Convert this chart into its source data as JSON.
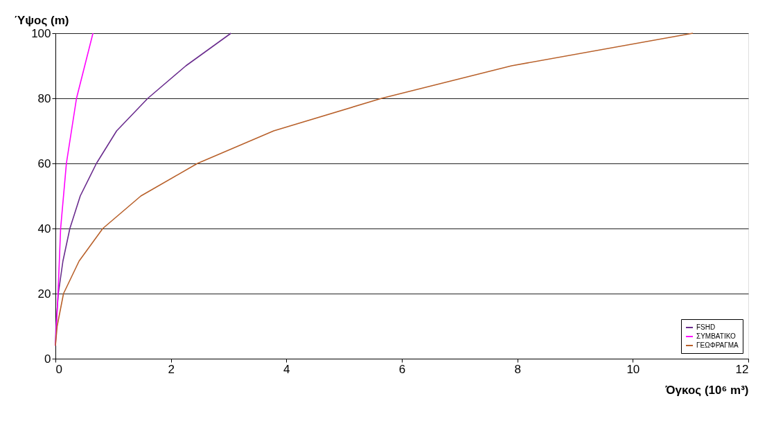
{
  "chart_data": {
    "type": "line",
    "xlabel": "Όγκος (10⁶ m³)",
    "ylabel": "Ύψος (m)",
    "xlim": [
      0,
      12
    ],
    "xticks": [
      0,
      2,
      4,
      6,
      8,
      10,
      12
    ],
    "ylim": [
      0,
      100
    ],
    "yticks": [
      0,
      20,
      40,
      60,
      80,
      100
    ],
    "grid": "y",
    "legend": "bottom right",
    "marker": "none",
    "line_style": "solid",
    "series": [
      {
        "name": "FSHD",
        "color": "#6a2c8e",
        "x": [
          0,
          0.01,
          0.05,
          0.13,
          0.25,
          0.43,
          0.71,
          1.06,
          1.6,
          2.26,
          3.04
        ],
        "values": [
          4,
          10,
          20,
          30,
          40,
          50,
          60,
          70,
          80,
          90,
          100
        ]
      },
      {
        "name": "ΣΥΜΒΑΤΙΚΟ",
        "color": "#ff00ff",
        "x": [
          0,
          0.045,
          0.09,
          0.19,
          0.365,
          0.65
        ],
        "values": [
          4,
          20,
          40,
          60,
          80,
          100
        ]
      },
      {
        "name": "ΓΕΩΦΡΑΓΜΑ",
        "color": "#b8602a",
        "x": [
          0,
          0.03,
          0.14,
          0.41,
          0.82,
          1.48,
          2.46,
          3.78,
          5.65,
          7.9,
          11.04
        ],
        "values": [
          4,
          10,
          20,
          30,
          40,
          50,
          60,
          70,
          80,
          90,
          100
        ]
      }
    ]
  }
}
